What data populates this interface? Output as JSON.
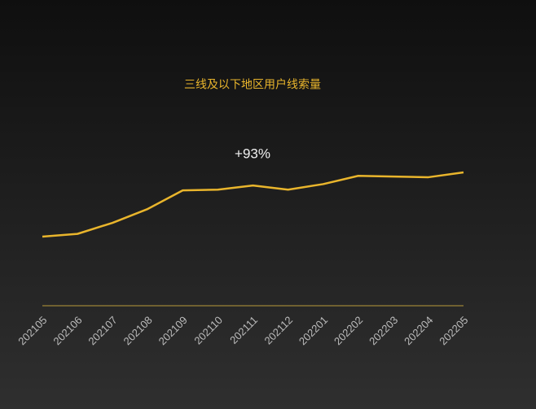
{
  "chart_data": {
    "type": "line",
    "title": "三线及以下地区用户线索量",
    "annotation": "+93%",
    "categories": [
      "202105",
      "202106",
      "202107",
      "202108",
      "202109",
      "202110",
      "202111",
      "202112",
      "202201",
      "202202",
      "202203",
      "202204",
      "202205"
    ],
    "values": [
      100,
      104,
      120,
      140,
      167,
      168,
      174,
      168,
      176,
      188,
      187,
      186,
      193
    ],
    "color": "#e9b52c"
  }
}
